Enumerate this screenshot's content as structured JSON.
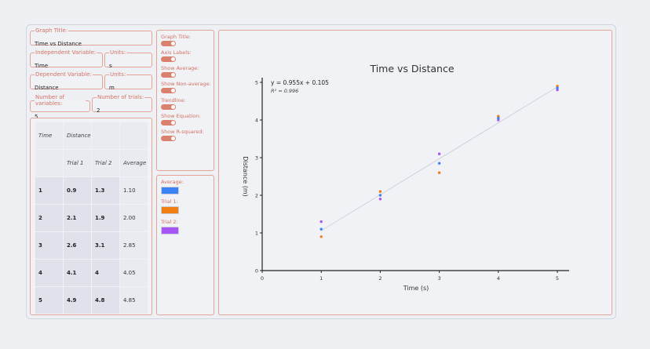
{
  "fields": {
    "graph_title": {
      "legend": "Graph Title:",
      "value": "Time vs Distance"
    },
    "independent": {
      "legend": "Independent Variable:",
      "value": "Time"
    },
    "independent_units": {
      "legend": "Units:",
      "value": "s"
    },
    "dependent": {
      "legend": "Dependent Variable:",
      "value": "Distance"
    },
    "dependent_units": {
      "legend": "Units:",
      "value": "m"
    },
    "num_variables": {
      "legend": "Number of variables:",
      "value": "5"
    },
    "num_trials": {
      "legend": "Number of trials:",
      "value": "2"
    }
  },
  "table": {
    "headers": {
      "col1": "Time",
      "col2": "Distance",
      "trial1": "Trial 1",
      "trial2": "Trial 2",
      "average": "Average"
    },
    "rows": [
      {
        "x": "1",
        "t1": "0.9",
        "t2": "1.3",
        "avg": "1.10"
      },
      {
        "x": "2",
        "t1": "2.1",
        "t2": "1.9",
        "avg": "2.00"
      },
      {
        "x": "3",
        "t1": "2.6",
        "t2": "3.1",
        "avg": "2.85"
      },
      {
        "x": "4",
        "t1": "4.1",
        "t2": "4",
        "avg": "4.05"
      },
      {
        "x": "5",
        "t1": "4.9",
        "t2": "4.8",
        "avg": "4.85"
      }
    ]
  },
  "options": [
    {
      "label": "Graph Title:",
      "on": true
    },
    {
      "label": "Axis Labels:",
      "on": true
    },
    {
      "label": "Show Average:",
      "on": true
    },
    {
      "label": "Show Non-average:",
      "on": true
    },
    {
      "label": "Trendline:",
      "on": true
    },
    {
      "label": "Show Equation:",
      "on": true
    },
    {
      "label": "Show R-squared:",
      "on": true
    }
  ],
  "series_colors": [
    {
      "label": "Average:",
      "color": "#3b82f6"
    },
    {
      "label": "Trial 1:",
      "color": "#f07e12"
    },
    {
      "label": "Trial 2:",
      "color": "#a855f7"
    }
  ],
  "chart_data": {
    "type": "scatter",
    "title": "Time vs Distance",
    "xlabel": "Time (s)",
    "ylabel": "Distance (m)",
    "xlim": [
      0,
      5
    ],
    "ylim": [
      0,
      5
    ],
    "xticks": [
      "0",
      "1",
      "2",
      "3",
      "4",
      "5"
    ],
    "yticks": [
      "0",
      "1",
      "2",
      "3",
      "4",
      "5"
    ],
    "x": [
      1,
      2,
      3,
      4,
      5
    ],
    "series": [
      {
        "name": "Average",
        "color": "#3b82f6",
        "values": [
          1.1,
          2.0,
          2.85,
          4.05,
          4.85
        ]
      },
      {
        "name": "Trial 1",
        "color": "#f07e12",
        "values": [
          0.9,
          2.1,
          2.6,
          4.1,
          4.9
        ]
      },
      {
        "name": "Trial 2",
        "color": "#a855f7",
        "values": [
          1.3,
          1.9,
          3.1,
          4.0,
          4.8
        ]
      }
    ],
    "trendline": {
      "slope": 0.955,
      "intercept": 0.105,
      "color": "#cfd3dc"
    },
    "equation": "y = 0.955x + 0.105",
    "r_squared": "R² = 0.996",
    "grid": false
  }
}
